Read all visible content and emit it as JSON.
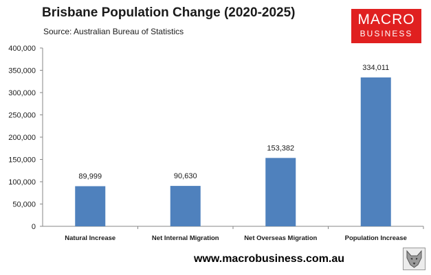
{
  "header": {
    "title": "Brisbane Population Change (2020-2025)",
    "subtitle": "Source: Australian Bureau of Statistics"
  },
  "logo": {
    "top_text": "MACRO",
    "bottom_text": "BUSINESS",
    "color": "#e02020",
    "icon": "macrobusiness-logo"
  },
  "footer": {
    "website": "www.macrobusiness.com.au",
    "icon": "wolf-icon"
  },
  "chart_data": {
    "type": "bar",
    "title": "Brisbane Population Change (2020-2025)",
    "xlabel": "",
    "ylabel": "",
    "categories": [
      "Natural Increase",
      "Net Internal Migration",
      "Net Overseas Migration",
      "Population Increase"
    ],
    "values": [
      89999,
      90630,
      153382,
      334011
    ],
    "value_labels": [
      "89,999",
      "90,630",
      "153,382",
      "334,011"
    ],
    "ylim": [
      0,
      400000
    ],
    "yticks": [
      0,
      50000,
      100000,
      150000,
      200000,
      250000,
      300000,
      350000,
      400000
    ],
    "ytick_labels": [
      "0",
      "50,000",
      "100,000",
      "150,000",
      "200,000",
      "250,000",
      "300,000",
      "350,000",
      "400,000"
    ],
    "bar_color": "#4f81bd",
    "grid": false,
    "legend": "none"
  }
}
